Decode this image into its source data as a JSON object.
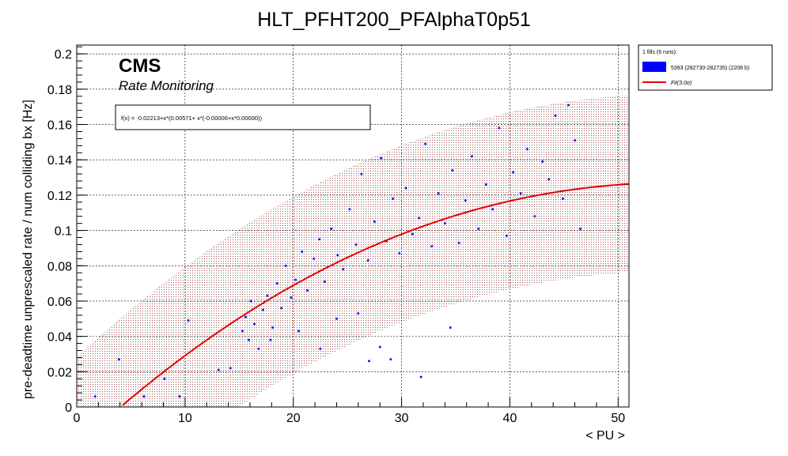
{
  "chart_data": {
    "type": "scatter",
    "title": "HLT_PFHT200_PFAlphaT0p51",
    "xlabel": "< PU >",
    "ylabel": "pre-deadtime unprescaled rate / num colliding bx [Hz]",
    "xlim": [
      0,
      51
    ],
    "ylim": [
      0,
      0.205
    ],
    "xticks": [
      0,
      10,
      20,
      30,
      40,
      50
    ],
    "yticks": [
      0,
      0.02,
      0.04,
      0.06,
      0.08,
      0.1,
      0.12,
      0.14,
      0.16,
      0.18,
      0.2
    ],
    "ytick_labels": [
      "0",
      "0.02",
      "0.04",
      "0.06",
      "0.08",
      "0.1",
      "0.12",
      "0.14",
      "0.16",
      "0.18",
      "0.2"
    ],
    "grid": true,
    "cms_label": "CMS",
    "cms_sublabel": "Rate Monitoring",
    "fit_formula": "f(x) = -0.02213+x*(0.00571+ x*(-0.00006+x*0.00000))",
    "fit": {
      "name": "Fit(3.0σ)",
      "coefficients": [
        -0.02213,
        0.00571,
        -6e-05,
        1e-07
      ],
      "x_range": [
        4,
        51
      ],
      "band_sigma": 3.0,
      "band_halfwidth": 0.05,
      "color": "#e00000"
    },
    "legend": {
      "header": "1 fills (6 runs):",
      "series_label": "5393 (282730-282735) (2208 b)",
      "fit_label": "Fit(3.0σ)",
      "placement": "top-right-outside"
    },
    "series": [
      {
        "name": "5393 (282730-282735) (2208 b)",
        "color": "#0000ff",
        "points": [
          [
            1.7,
            0.006
          ],
          [
            3.9,
            0.027
          ],
          [
            6.2,
            0.006
          ],
          [
            8.1,
            0.016
          ],
          [
            9.5,
            0.006
          ],
          [
            10.3,
            0.049
          ],
          [
            13.1,
            0.021
          ],
          [
            14.2,
            0.022
          ],
          [
            15.3,
            0.043
          ],
          [
            15.6,
            0.051
          ],
          [
            15.9,
            0.038
          ],
          [
            16.1,
            0.06
          ],
          [
            16.4,
            0.047
          ],
          [
            16.8,
            0.033
          ],
          [
            17.2,
            0.055
          ],
          [
            17.6,
            0.063
          ],
          [
            18.1,
            0.045
          ],
          [
            18.5,
            0.07
          ],
          [
            18.9,
            0.056
          ],
          [
            19.3,
            0.08
          ],
          [
            19.8,
            0.062
          ],
          [
            20.2,
            0.072
          ],
          [
            20.8,
            0.088
          ],
          [
            21.3,
            0.066
          ],
          [
            21.9,
            0.084
          ],
          [
            22.4,
            0.095
          ],
          [
            22.9,
            0.071
          ],
          [
            23.5,
            0.101
          ],
          [
            24.1,
            0.086
          ],
          [
            24.6,
            0.078
          ],
          [
            25.2,
            0.112
          ],
          [
            25.8,
            0.092
          ],
          [
            26.3,
            0.132
          ],
          [
            26.9,
            0.083
          ],
          [
            27.5,
            0.105
          ],
          [
            28.1,
            0.141
          ],
          [
            28.6,
            0.094
          ],
          [
            29.2,
            0.118
          ],
          [
            29.8,
            0.087
          ],
          [
            30.4,
            0.124
          ],
          [
            31.0,
            0.098
          ],
          [
            31.6,
            0.107
          ],
          [
            32.2,
            0.149
          ],
          [
            32.8,
            0.091
          ],
          [
            33.4,
            0.121
          ],
          [
            34.0,
            0.104
          ],
          [
            34.7,
            0.134
          ],
          [
            35.3,
            0.093
          ],
          [
            35.9,
            0.117
          ],
          [
            36.5,
            0.142
          ],
          [
            37.1,
            0.101
          ],
          [
            37.8,
            0.126
          ],
          [
            38.4,
            0.112
          ],
          [
            39.0,
            0.158
          ],
          [
            39.7,
            0.097
          ],
          [
            40.3,
            0.133
          ],
          [
            41.0,
            0.121
          ],
          [
            41.6,
            0.146
          ],
          [
            42.3,
            0.108
          ],
          [
            43.0,
            0.139
          ],
          [
            43.6,
            0.129
          ],
          [
            44.2,
            0.165
          ],
          [
            44.9,
            0.118
          ],
          [
            45.4,
            0.171
          ],
          [
            46.0,
            0.151
          ],
          [
            46.5,
            0.101
          ],
          [
            22.5,
            0.033
          ],
          [
            27.0,
            0.026
          ],
          [
            28.0,
            0.034
          ],
          [
            31.8,
            0.017
          ],
          [
            34.5,
            0.045
          ],
          [
            29.0,
            0.027
          ],
          [
            26.0,
            0.053
          ],
          [
            20.5,
            0.043
          ],
          [
            17.9,
            0.038
          ],
          [
            24.0,
            0.05
          ]
        ]
      }
    ]
  }
}
